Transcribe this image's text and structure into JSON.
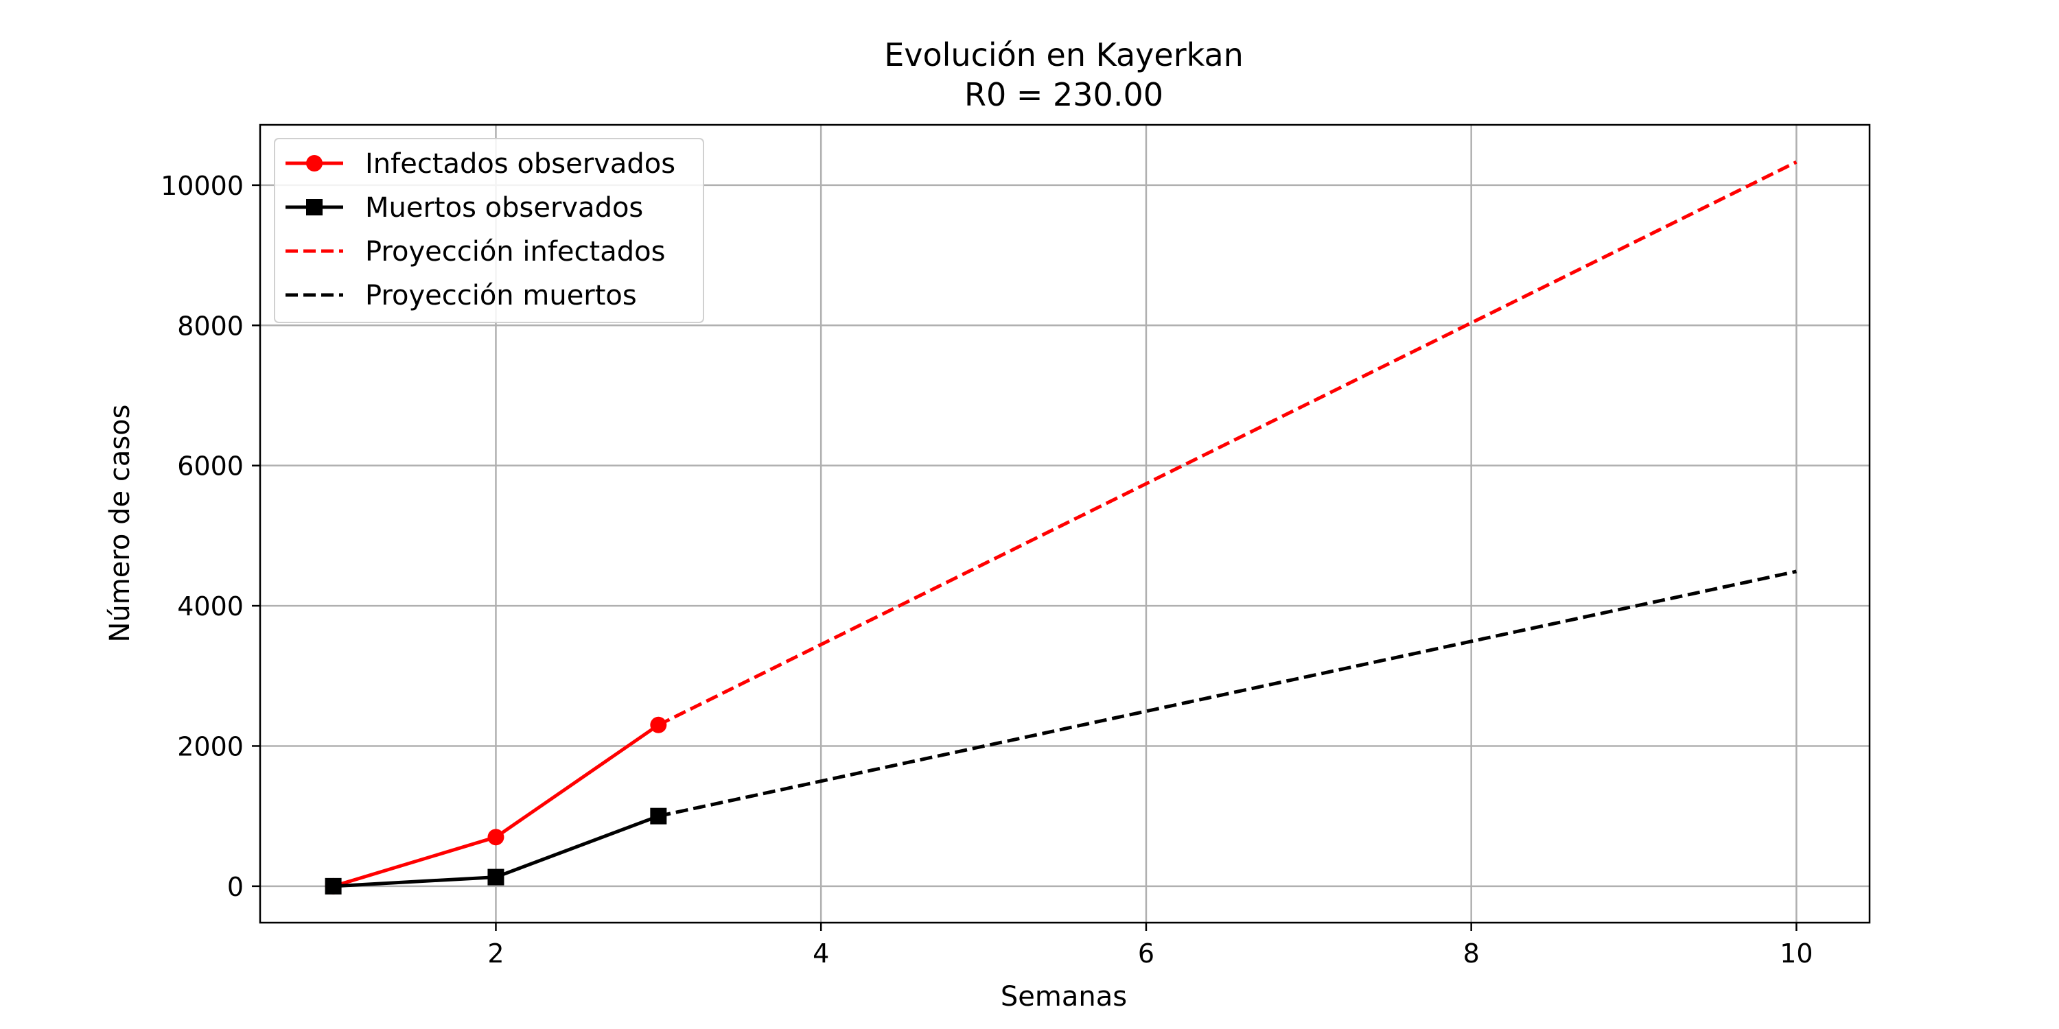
{
  "chart_data": {
    "type": "line",
    "title": "Evolución en Kayerkan",
    "subtitle": "R0 = 230.00",
    "xlabel": "Semanas",
    "ylabel": "Número de casos",
    "xlim": [
      0.55,
      10.45
    ],
    "ylim": [
      -520,
      10860
    ],
    "xticks": [
      2,
      4,
      6,
      8,
      10
    ],
    "yticks": [
      0,
      2000,
      4000,
      6000,
      8000,
      10000
    ],
    "grid": true,
    "legend_position": "top-left",
    "series": [
      {
        "name": "Infectados observados",
        "color": "#ff0000",
        "style": "solid",
        "marker": "circle",
        "x": [
          1,
          2,
          3
        ],
        "y": [
          0,
          700,
          2300
        ]
      },
      {
        "name": "Muertos observados",
        "color": "#000000",
        "style": "solid",
        "marker": "square",
        "x": [
          1,
          2,
          3
        ],
        "y": [
          0,
          130,
          1000
        ]
      },
      {
        "name": "Proyección infectados",
        "color": "#ff0000",
        "style": "dashed",
        "marker": "none",
        "x": [
          3,
          10
        ],
        "y": [
          2300,
          10330
        ]
      },
      {
        "name": "Proyección muertos",
        "color": "#000000",
        "style": "dashed",
        "marker": "none",
        "x": [
          3,
          10
        ],
        "y": [
          1000,
          4490
        ]
      }
    ]
  }
}
